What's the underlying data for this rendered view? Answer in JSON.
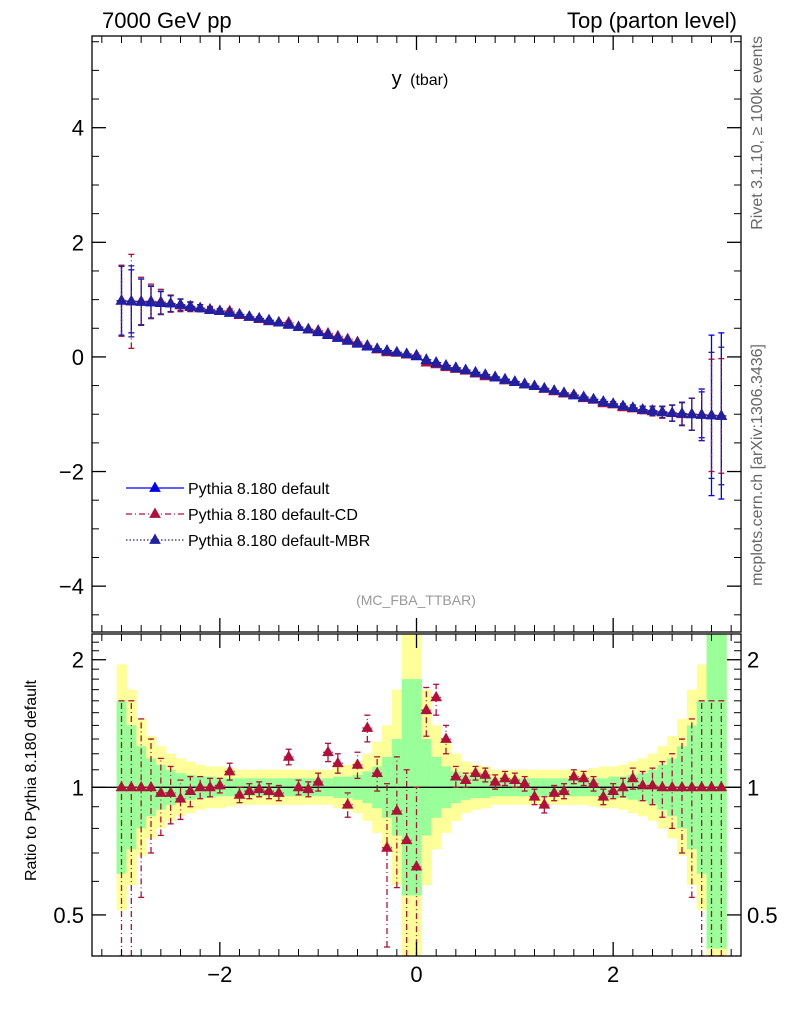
{
  "header": {
    "left_title": "7000 GeV pp",
    "right_title": "Top (parton level)"
  },
  "side_labels": {
    "rivet": "Rivet 3.1.10, ≥ 100k events",
    "mcplots": "mcplots.cern.ch [arXiv:1306.3436]"
  },
  "plot_title": {
    "main": "y",
    "sub": "(tbar)"
  },
  "analysis_label": "(MC_FBA_TTBAR)",
  "colors": {
    "default": "#0000ee",
    "cd": "#b0103a",
    "mbr": "#2020a0",
    "band_yellow": "#ffff99",
    "band_green": "#99ff99",
    "axis": "#000000",
    "side_text": "#666666"
  },
  "chart_data": [
    {
      "type": "scatter",
      "title": "y (tbar)",
      "xlim": [
        -3.3,
        3.3
      ],
      "ylim": [
        -4.8,
        5.6
      ],
      "y_ticks": [
        -4,
        -2,
        0,
        2,
        4
      ],
      "y_tick_labels": [
        "−4",
        "−2",
        "0",
        "2",
        "4"
      ],
      "x": [
        -3.0,
        -2.9,
        -2.8,
        -2.7,
        -2.6,
        -2.5,
        -2.4,
        -2.3,
        -2.2,
        -2.1,
        -2.0,
        -1.9,
        -1.8,
        -1.7,
        -1.6,
        -1.5,
        -1.4,
        -1.3,
        -1.2,
        -1.1,
        -1.0,
        -0.9,
        -0.8,
        -0.7,
        -0.6,
        -0.5,
        -0.4,
        -0.3,
        -0.2,
        -0.1,
        0.0,
        0.1,
        0.2,
        0.3,
        0.4,
        0.5,
        0.6,
        0.7,
        0.8,
        0.9,
        1.0,
        1.1,
        1.2,
        1.3,
        1.4,
        1.5,
        1.6,
        1.7,
        1.8,
        1.9,
        2.0,
        2.1,
        2.2,
        2.3,
        2.4,
        2.5,
        2.6,
        2.7,
        2.8,
        2.9,
        3.0,
        3.1
      ],
      "series": [
        {
          "name": "Pythia 8.180 default",
          "style": "solid",
          "values": [
            0.98,
            0.97,
            0.96,
            0.95,
            0.94,
            0.93,
            0.91,
            0.88,
            0.85,
            0.82,
            0.8,
            0.77,
            0.74,
            0.7,
            0.67,
            0.64,
            0.6,
            0.56,
            0.52,
            0.48,
            0.43,
            0.38,
            0.33,
            0.28,
            0.23,
            0.18,
            0.14,
            0.11,
            0.08,
            0.05,
            0.01,
            -0.05,
            -0.1,
            -0.15,
            -0.19,
            -0.23,
            -0.27,
            -0.31,
            -0.35,
            -0.39,
            -0.43,
            -0.47,
            -0.51,
            -0.55,
            -0.59,
            -0.63,
            -0.67,
            -0.7,
            -0.74,
            -0.78,
            -0.82,
            -0.86,
            -0.89,
            -0.92,
            -0.94,
            -0.96,
            -0.98,
            -0.99,
            -1.0,
            -1.01,
            -1.02,
            -1.03
          ],
          "errors": [
            0.6,
            0.55,
            0.4,
            0.28,
            0.2,
            0.14,
            0.1,
            0.08,
            0.06,
            0.05,
            0.04,
            0.04,
            0.03,
            0.03,
            0.03,
            0.03,
            0.02,
            0.02,
            0.02,
            0.02,
            0.02,
            0.02,
            0.02,
            0.02,
            0.02,
            0.02,
            0.02,
            0.02,
            0.02,
            0.02,
            0.02,
            0.02,
            0.02,
            0.02,
            0.02,
            0.02,
            0.02,
            0.02,
            0.02,
            0.02,
            0.02,
            0.02,
            0.02,
            0.02,
            0.02,
            0.02,
            0.03,
            0.03,
            0.03,
            0.03,
            0.04,
            0.04,
            0.05,
            0.06,
            0.08,
            0.1,
            0.14,
            0.2,
            0.28,
            0.4,
            1.4,
            1.45
          ]
        },
        {
          "name": "Pythia 8.180 default-CD",
          "style": "dashdot",
          "values": [
            0.98,
            0.97,
            0.97,
            0.97,
            0.96,
            0.93,
            0.9,
            0.87,
            0.85,
            0.83,
            0.8,
            0.8,
            0.73,
            0.7,
            0.66,
            0.62,
            0.6,
            0.6,
            0.52,
            0.48,
            0.46,
            0.41,
            0.36,
            0.31,
            0.26,
            0.2,
            0.13,
            0.08,
            0.07,
            0.04,
            0.03,
            -0.1,
            -0.13,
            -0.18,
            -0.21,
            -0.24,
            -0.29,
            -0.34,
            -0.36,
            -0.41,
            -0.44,
            -0.48,
            -0.51,
            -0.56,
            -0.6,
            -0.64,
            -0.66,
            -0.72,
            -0.75,
            -0.81,
            -0.83,
            -0.88,
            -0.9,
            -0.93,
            -0.95,
            -0.97,
            -0.98,
            -1.0,
            -1.0,
            -1.01,
            -1.02,
            -1.03
          ],
          "errors": [
            0.62,
            0.82,
            0.42,
            0.3,
            0.22,
            0.15,
            0.11,
            0.08,
            0.06,
            0.05,
            0.04,
            0.04,
            0.03,
            0.03,
            0.03,
            0.03,
            0.03,
            0.03,
            0.02,
            0.02,
            0.02,
            0.02,
            0.02,
            0.02,
            0.02,
            0.02,
            0.02,
            0.02,
            0.02,
            0.02,
            0.02,
            0.02,
            0.02,
            0.02,
            0.02,
            0.02,
            0.02,
            0.02,
            0.02,
            0.02,
            0.02,
            0.02,
            0.02,
            0.02,
            0.03,
            0.03,
            0.03,
            0.03,
            0.03,
            0.03,
            0.04,
            0.04,
            0.05,
            0.06,
            0.08,
            0.1,
            0.14,
            0.2,
            0.28,
            0.45,
            0.98,
            1.0
          ]
        },
        {
          "name": "Pythia 8.180 default-MBR",
          "style": "dotted",
          "values": [
            0.98,
            0.97,
            0.96,
            0.96,
            0.95,
            0.93,
            0.91,
            0.88,
            0.85,
            0.82,
            0.8,
            0.77,
            0.74,
            0.7,
            0.67,
            0.63,
            0.6,
            0.57,
            0.52,
            0.48,
            0.44,
            0.39,
            0.34,
            0.29,
            0.24,
            0.19,
            0.14,
            0.1,
            0.08,
            0.05,
            0.02,
            -0.06,
            -0.11,
            -0.16,
            -0.2,
            -0.23,
            -0.28,
            -0.32,
            -0.36,
            -0.4,
            -0.44,
            -0.48,
            -0.51,
            -0.55,
            -0.59,
            -0.63,
            -0.67,
            -0.71,
            -0.74,
            -0.79,
            -0.82,
            -0.86,
            -0.89,
            -0.92,
            -0.94,
            -0.96,
            -0.98,
            -0.99,
            -1.0,
            -1.01,
            -1.02,
            -1.03
          ],
          "errors": [
            0.6,
            0.62,
            0.4,
            0.28,
            0.2,
            0.14,
            0.1,
            0.08,
            0.06,
            0.05,
            0.04,
            0.04,
            0.03,
            0.03,
            0.03,
            0.03,
            0.02,
            0.02,
            0.02,
            0.02,
            0.02,
            0.02,
            0.02,
            0.02,
            0.02,
            0.02,
            0.02,
            0.02,
            0.02,
            0.02,
            0.02,
            0.02,
            0.02,
            0.02,
            0.02,
            0.02,
            0.02,
            0.02,
            0.02,
            0.02,
            0.02,
            0.02,
            0.02,
            0.02,
            0.02,
            0.02,
            0.03,
            0.03,
            0.03,
            0.03,
            0.04,
            0.04,
            0.05,
            0.06,
            0.08,
            0.1,
            0.14,
            0.2,
            0.28,
            0.45,
            1.1,
            1.2
          ]
        }
      ],
      "legend": {
        "position": "bottom-left",
        "entries": [
          "Pythia 8.180 default",
          "Pythia 8.180 default-CD",
          "Pythia 8.180 default-MBR"
        ]
      }
    },
    {
      "type": "scatter",
      "title": "",
      "ylabel": "Ratio to Pythia 8.180 default",
      "xlim": [
        -3.3,
        3.3
      ],
      "ylim": [
        0.4,
        2.3
      ],
      "y_scale": "log",
      "y_ticks": [
        0.5,
        1,
        2
      ],
      "y_tick_labels": [
        "0.5",
        "1",
        "2"
      ],
      "x_ticks": [
        -2,
        0,
        2
      ],
      "x_tick_labels": [
        "−2",
        "0",
        "2"
      ],
      "x": [
        -3.0,
        -2.9,
        -2.8,
        -2.7,
        -2.6,
        -2.5,
        -2.4,
        -2.3,
        -2.2,
        -2.1,
        -2.0,
        -1.9,
        -1.8,
        -1.7,
        -1.6,
        -1.5,
        -1.4,
        -1.3,
        -1.2,
        -1.1,
        -1.0,
        -0.9,
        -0.8,
        -0.7,
        -0.6,
        -0.5,
        -0.4,
        -0.3,
        -0.2,
        -0.1,
        0.0,
        0.1,
        0.2,
        0.3,
        0.4,
        0.5,
        0.6,
        0.7,
        0.8,
        0.9,
        1.0,
        1.1,
        1.2,
        1.3,
        1.4,
        1.5,
        1.6,
        1.7,
        1.8,
        1.9,
        2.0,
        2.1,
        2.2,
        2.3,
        2.4,
        2.5,
        2.6,
        2.7,
        2.8,
        2.9,
        3.0,
        3.1
      ],
      "band_yellow": [
        1.95,
        1.7,
        1.45,
        1.32,
        1.25,
        1.2,
        1.17,
        1.15,
        1.13,
        1.12,
        1.12,
        1.11,
        1.1,
        1.1,
        1.1,
        1.1,
        1.1,
        1.1,
        1.1,
        1.1,
        1.1,
        1.1,
        1.12,
        1.13,
        1.15,
        1.2,
        1.28,
        1.4,
        1.7,
        2.6,
        2.6,
        1.7,
        1.4,
        1.28,
        1.2,
        1.15,
        1.13,
        1.12,
        1.1,
        1.1,
        1.1,
        1.1,
        1.1,
        1.1,
        1.1,
        1.1,
        1.1,
        1.1,
        1.11,
        1.12,
        1.12,
        1.13,
        1.15,
        1.17,
        1.2,
        1.25,
        1.32,
        1.45,
        1.7,
        1.95,
        2.6,
        2.6
      ],
      "band_green": [
        1.6,
        1.4,
        1.25,
        1.17,
        1.13,
        1.1,
        1.08,
        1.07,
        1.06,
        1.06,
        1.05,
        1.05,
        1.05,
        1.05,
        1.05,
        1.05,
        1.05,
        1.05,
        1.05,
        1.05,
        1.05,
        1.05,
        1.06,
        1.06,
        1.07,
        1.09,
        1.12,
        1.18,
        1.3,
        1.8,
        1.8,
        1.3,
        1.18,
        1.12,
        1.09,
        1.07,
        1.06,
        1.06,
        1.05,
        1.05,
        1.05,
        1.05,
        1.05,
        1.05,
        1.05,
        1.05,
        1.05,
        1.05,
        1.05,
        1.05,
        1.06,
        1.06,
        1.07,
        1.08,
        1.1,
        1.13,
        1.17,
        1.25,
        1.4,
        1.6,
        2.4,
        2.4
      ],
      "series": [
        {
          "name": "Pythia 8.180 default-CD",
          "values": [
            1.0,
            1.0,
            1.0,
            1.0,
            0.97,
            0.97,
            0.94,
            0.98,
            1.0,
            1.0,
            1.01,
            1.09,
            0.96,
            0.98,
            0.99,
            0.98,
            0.97,
            1.18,
            1.0,
            0.99,
            1.03,
            1.21,
            1.14,
            0.91,
            1.13,
            1.38,
            1.08,
            0.72,
            0.88,
            0.75,
            0.65,
            1.52,
            1.63,
            1.3,
            1.06,
            1.04,
            1.08,
            1.07,
            1.03,
            1.05,
            1.04,
            1.02,
            0.95,
            0.91,
            0.97,
            0.98,
            1.06,
            1.05,
            1.02,
            0.95,
            0.98,
            1.0,
            1.05,
            1.01,
            1.01,
            1.0,
            1.0,
            1.0,
            1.0,
            1.0,
            1.0,
            1.0
          ],
          "err_low": [
            0.6,
            0.6,
            0.45,
            0.3,
            0.2,
            0.15,
            0.1,
            0.08,
            0.06,
            0.05,
            0.04,
            0.05,
            0.04,
            0.04,
            0.04,
            0.04,
            0.04,
            0.05,
            0.04,
            0.04,
            0.05,
            0.06,
            0.06,
            0.06,
            0.08,
            0.1,
            0.1,
            0.3,
            0.3,
            0.35,
            0.35,
            0.2,
            0.15,
            0.1,
            0.06,
            0.04,
            0.04,
            0.04,
            0.04,
            0.04,
            0.04,
            0.04,
            0.04,
            0.04,
            0.04,
            0.04,
            0.04,
            0.04,
            0.04,
            0.04,
            0.04,
            0.05,
            0.06,
            0.08,
            0.1,
            0.15,
            0.2,
            0.3,
            0.45,
            0.6,
            0.6,
            0.6
          ],
          "err_high": [
            0.6,
            0.6,
            0.45,
            0.3,
            0.2,
            0.15,
            0.1,
            0.08,
            0.06,
            0.05,
            0.04,
            0.05,
            0.04,
            0.04,
            0.04,
            0.04,
            0.04,
            0.05,
            0.04,
            0.04,
            0.05,
            0.06,
            0.06,
            0.06,
            0.08,
            0.1,
            0.1,
            0.3,
            0.3,
            0.35,
            0.35,
            0.2,
            0.12,
            0.1,
            0.06,
            0.04,
            0.04,
            0.04,
            0.04,
            0.04,
            0.04,
            0.04,
            0.04,
            0.04,
            0.04,
            0.04,
            0.04,
            0.04,
            0.04,
            0.04,
            0.04,
            0.05,
            0.06,
            0.08,
            0.1,
            0.15,
            0.2,
            0.3,
            0.45,
            0.6,
            0.6,
            0.6
          ]
        }
      ],
      "reference_line": 1
    }
  ]
}
